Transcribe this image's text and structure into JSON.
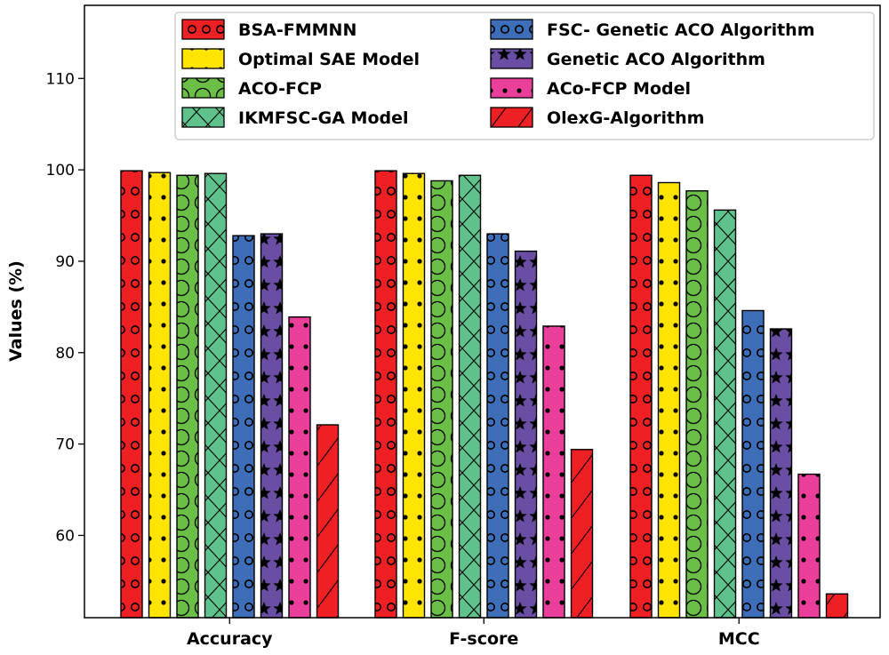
{
  "chart_data": {
    "type": "bar",
    "title": "",
    "xlabel": "",
    "ylabel": "Values  (%)",
    "ylim": [
      51,
      118
    ],
    "yticks": [
      60,
      70,
      80,
      90,
      100,
      110
    ],
    "grid": false,
    "legend_position": "top-center",
    "legend_columns": 2,
    "categories": [
      "Accuracy",
      "F-score",
      "MCC"
    ],
    "series": [
      {
        "name": "BSA-FMMNN",
        "color": "#ee2024",
        "pattern": "rings",
        "values": [
          99.9,
          99.9,
          99.4
        ]
      },
      {
        "name": "Optimal SAE Model",
        "color": "#ffe400",
        "pattern": "dots",
        "values": [
          99.7,
          99.6,
          98.6
        ]
      },
      {
        "name": "ACO-FCP",
        "color": "#6bbf46",
        "pattern": "big-rings",
        "values": [
          99.4,
          98.8,
          97.7
        ]
      },
      {
        "name": "IKMFSC-GA Model",
        "color": "#5fc18c",
        "pattern": "crosshatch",
        "values": [
          99.6,
          99.4,
          95.6
        ]
      },
      {
        "name": "FSC- Genetic ACO Algorithm",
        "color": "#3f6eb8",
        "pattern": "rings",
        "values": [
          92.8,
          93.0,
          84.6
        ]
      },
      {
        "name": "Genetic ACO Algorithm",
        "color": "#6a4ea3",
        "pattern": "stars",
        "values": [
          93.0,
          91.1,
          82.6
        ]
      },
      {
        "name": "ACo-FCP Model",
        "color": "#e93f9b",
        "pattern": "dots",
        "values": [
          83.9,
          82.9,
          66.7
        ]
      },
      {
        "name": "OlexG-Algorithm",
        "color": "#ee2024",
        "pattern": "slash",
        "values": [
          72.1,
          69.4,
          53.6
        ]
      }
    ]
  }
}
